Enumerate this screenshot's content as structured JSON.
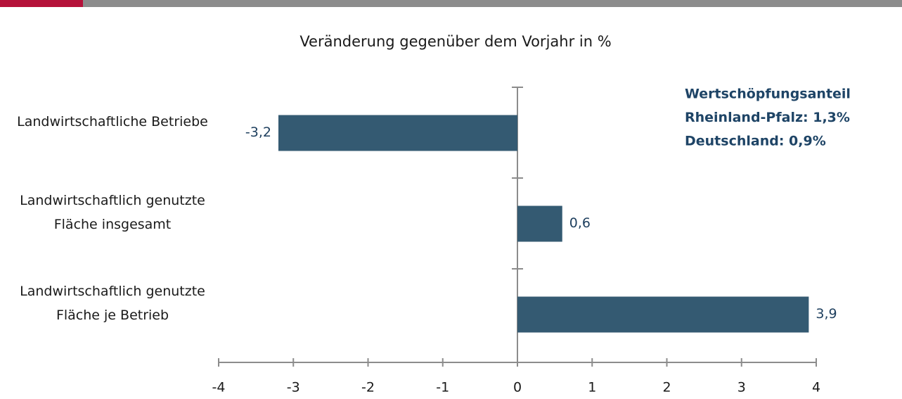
{
  "chart_data": {
    "type": "hbar",
    "title": "Veränderung gegenüber dem Vorjahr in %",
    "categories": [
      "Landwirtschaftliche Betriebe",
      "Landwirtschaftlich genutzte\nFläche insgesamt",
      "Landwirtschaftlich genutzte\nFläche je Betrieb"
    ],
    "values": [
      -3.2,
      0.6,
      3.9
    ],
    "value_labels": [
      "-3,2",
      "0,6",
      "3,9"
    ],
    "color": "#345a72",
    "xlim": [
      -4,
      4
    ],
    "xticks": [
      -4,
      -3,
      -2,
      -1,
      0,
      1,
      2,
      3,
      4
    ],
    "annotation": [
      "Wertschöpfungsanteil",
      "Rheinland-Pfalz: 1,3%",
      "Deutschland: 0,9%"
    ]
  }
}
